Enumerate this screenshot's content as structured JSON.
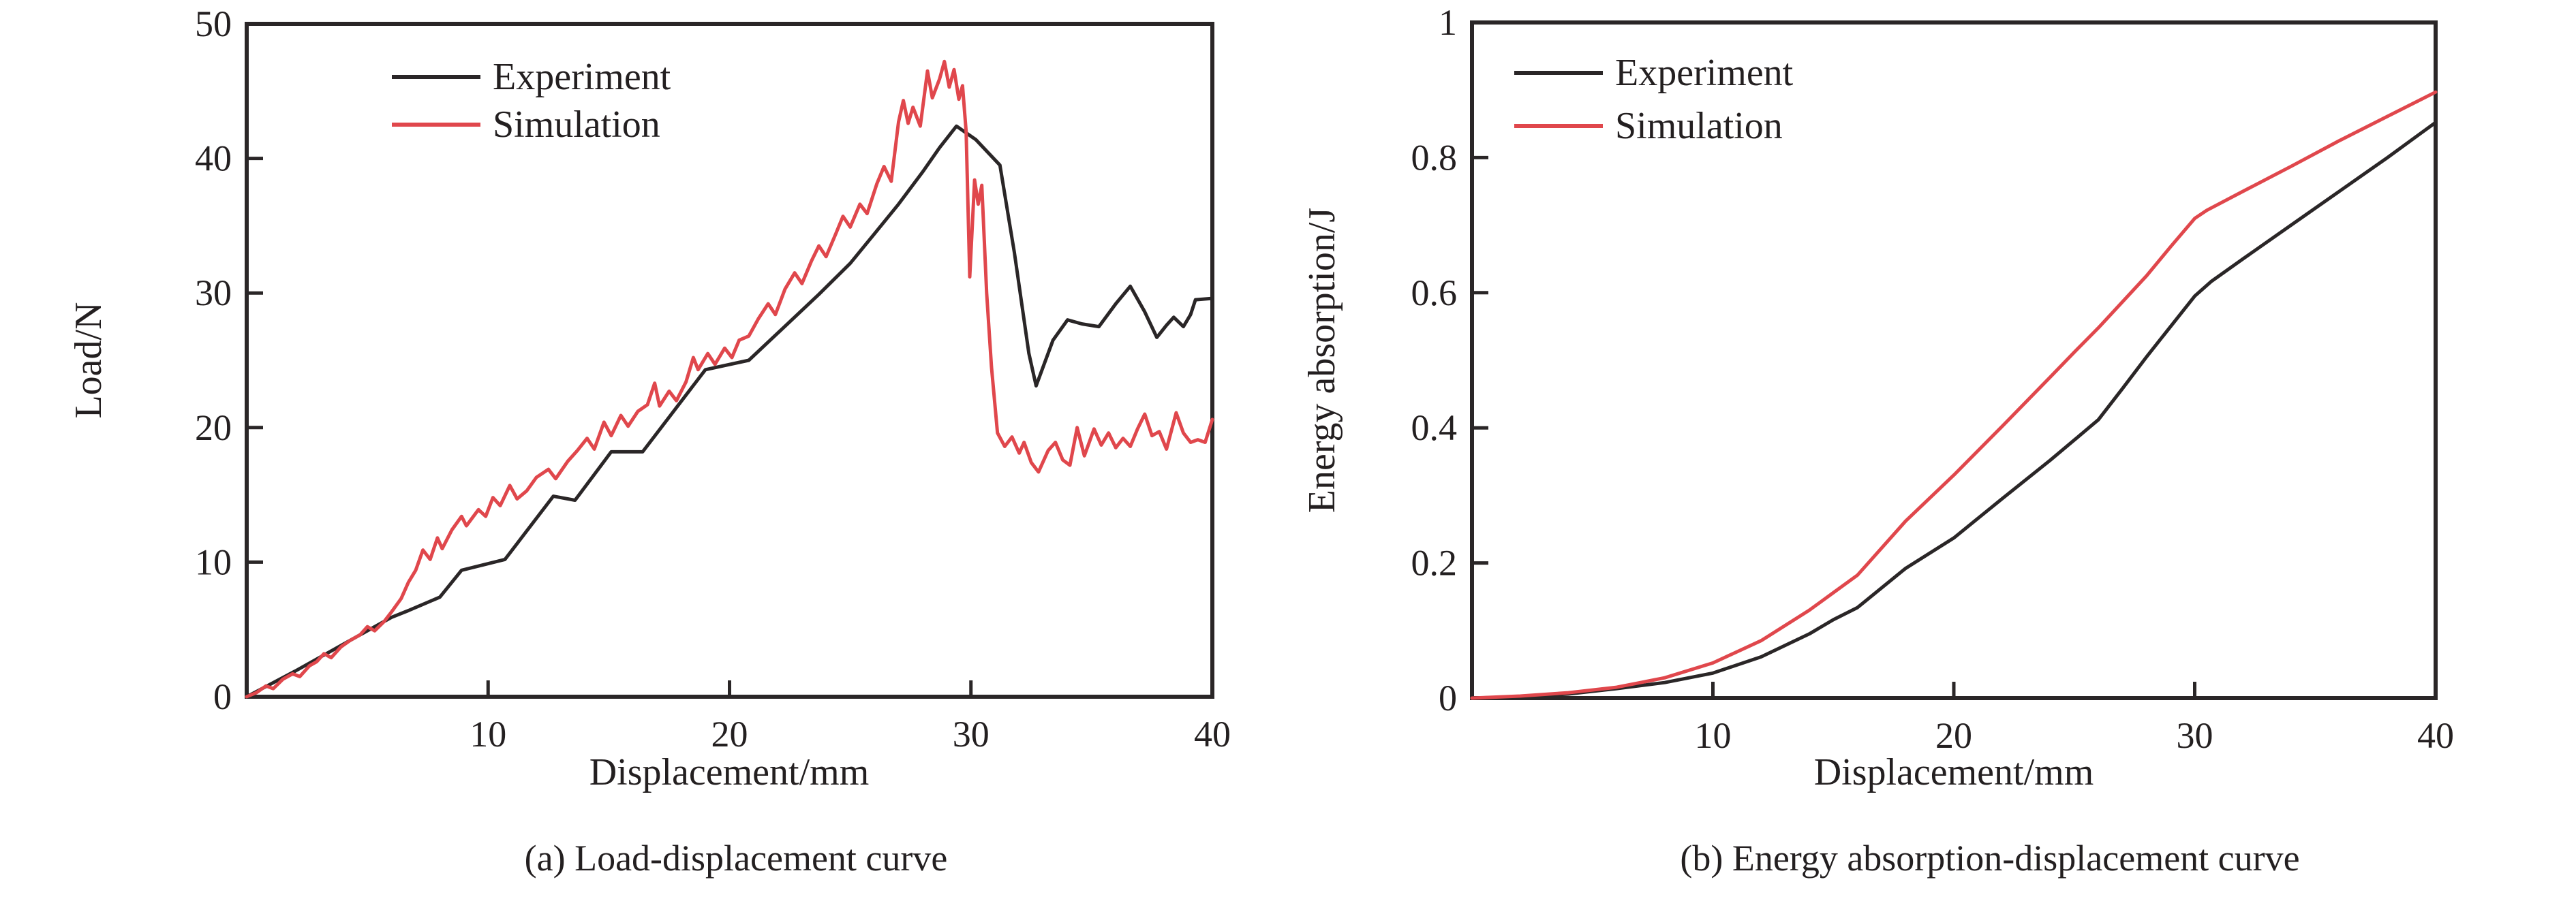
{
  "figure": {
    "background": "#ffffff",
    "text_color": "#231f20",
    "frame_color": "#2a2627",
    "accent_red": "#e0474c"
  },
  "chart_data": [
    {
      "type": "line",
      "panel_id": "a",
      "caption": "(a) Load-displacement curve",
      "xlabel": "Displacement/mm",
      "ylabel": "Load/N",
      "xlim": [
        0,
        40
      ],
      "ylim": [
        0,
        50
      ],
      "x_ticks": [
        10,
        20,
        30,
        40
      ],
      "y_ticks": [
        0,
        10,
        20,
        30,
        40,
        50
      ],
      "grid": false,
      "legend_position": "upper-left",
      "legend": [
        "Experiment",
        "Simulation"
      ],
      "series": [
        {
          "name": "Experiment",
          "color": "#2a2627",
          "points": [
            [
              0,
              0
            ],
            [
              2,
              1.9
            ],
            [
              4,
              3.9
            ],
            [
              6,
              5.9
            ],
            [
              6.7,
              6.4
            ],
            [
              8,
              7.4
            ],
            [
              8.9,
              9.4
            ],
            [
              10.7,
              10.2
            ],
            [
              12.7,
              14.9
            ],
            [
              13.6,
              14.6
            ],
            [
              15.1,
              18.2
            ],
            [
              16.4,
              18.2
            ],
            [
              19.0,
              24.3
            ],
            [
              20.8,
              25.0
            ],
            [
              23.7,
              29.9
            ],
            [
              25.0,
              32.2
            ],
            [
              26.0,
              34.4
            ],
            [
              27.0,
              36.6
            ],
            [
              28.0,
              39.0
            ],
            [
              28.7,
              40.8
            ],
            [
              29.4,
              42.4
            ],
            [
              30.2,
              41.4
            ],
            [
              31.2,
              39.5
            ],
            [
              31.8,
              33.0
            ],
            [
              32.4,
              25.5
            ],
            [
              32.7,
              23.1
            ],
            [
              33.4,
              26.5
            ],
            [
              34.0,
              28.0
            ],
            [
              34.6,
              27.7
            ],
            [
              35.3,
              27.5
            ],
            [
              36.0,
              29.2
            ],
            [
              36.6,
              30.5
            ],
            [
              37.2,
              28.6
            ],
            [
              37.7,
              26.7
            ],
            [
              38.1,
              27.6
            ],
            [
              38.4,
              28.2
            ],
            [
              38.8,
              27.5
            ],
            [
              39.1,
              28.4
            ],
            [
              39.3,
              29.5
            ],
            [
              40,
              29.6
            ]
          ]
        },
        {
          "name": "Simulation",
          "color": "#e0474c",
          "points": [
            [
              0,
              0
            ],
            [
              0.4,
              0.3
            ],
            [
              0.8,
              0.8
            ],
            [
              1.1,
              0.6
            ],
            [
              1.5,
              1.3
            ],
            [
              1.9,
              1.7
            ],
            [
              2.2,
              1.5
            ],
            [
              2.6,
              2.3
            ],
            [
              2.9,
              2.6
            ],
            [
              3.2,
              3.2
            ],
            [
              3.5,
              2.9
            ],
            [
              3.9,
              3.7
            ],
            [
              4.3,
              4.2
            ],
            [
              4.7,
              4.6
            ],
            [
              5.0,
              5.2
            ],
            [
              5.3,
              4.9
            ],
            [
              5.7,
              5.6
            ],
            [
              6.0,
              6.3
            ],
            [
              6.4,
              7.3
            ],
            [
              6.7,
              8.5
            ],
            [
              7.0,
              9.4
            ],
            [
              7.3,
              10.9
            ],
            [
              7.6,
              10.2
            ],
            [
              7.9,
              11.8
            ],
            [
              8.1,
              11.0
            ],
            [
              8.5,
              12.4
            ],
            [
              8.9,
              13.4
            ],
            [
              9.1,
              12.7
            ],
            [
              9.6,
              13.9
            ],
            [
              9.9,
              13.4
            ],
            [
              10.2,
              14.8
            ],
            [
              10.5,
              14.2
            ],
            [
              10.9,
              15.7
            ],
            [
              11.2,
              14.7
            ],
            [
              11.6,
              15.3
            ],
            [
              12.0,
              16.3
            ],
            [
              12.5,
              16.9
            ],
            [
              12.8,
              16.2
            ],
            [
              13.3,
              17.5
            ],
            [
              13.7,
              18.3
            ],
            [
              14.1,
              19.2
            ],
            [
              14.4,
              18.4
            ],
            [
              14.8,
              20.4
            ],
            [
              15.1,
              19.4
            ],
            [
              15.5,
              20.9
            ],
            [
              15.8,
              20.1
            ],
            [
              16.2,
              21.2
            ],
            [
              16.6,
              21.7
            ],
            [
              16.9,
              23.3
            ],
            [
              17.1,
              21.6
            ],
            [
              17.5,
              22.7
            ],
            [
              17.8,
              22.0
            ],
            [
              18.2,
              23.4
            ],
            [
              18.5,
              25.2
            ],
            [
              18.7,
              24.3
            ],
            [
              19.1,
              25.5
            ],
            [
              19.4,
              24.7
            ],
            [
              19.8,
              25.9
            ],
            [
              20.1,
              25.2
            ],
            [
              20.4,
              26.5
            ],
            [
              20.8,
              26.8
            ],
            [
              21.2,
              28.1
            ],
            [
              21.6,
              29.2
            ],
            [
              21.9,
              28.4
            ],
            [
              22.3,
              30.3
            ],
            [
              22.7,
              31.5
            ],
            [
              23.0,
              30.7
            ],
            [
              23.4,
              32.4
            ],
            [
              23.7,
              33.5
            ],
            [
              24.0,
              32.7
            ],
            [
              24.4,
              34.4
            ],
            [
              24.7,
              35.7
            ],
            [
              25.0,
              34.9
            ],
            [
              25.4,
              36.6
            ],
            [
              25.7,
              35.9
            ],
            [
              26.1,
              38.1
            ],
            [
              26.4,
              39.4
            ],
            [
              26.7,
              38.3
            ],
            [
              27.0,
              42.7
            ],
            [
              27.2,
              44.3
            ],
            [
              27.4,
              42.6
            ],
            [
              27.6,
              43.8
            ],
            [
              27.9,
              42.4
            ],
            [
              28.2,
              46.5
            ],
            [
              28.4,
              44.5
            ],
            [
              28.7,
              45.9
            ],
            [
              28.9,
              47.2
            ],
            [
              29.1,
              45.3
            ],
            [
              29.3,
              46.6
            ],
            [
              29.5,
              44.4
            ],
            [
              29.65,
              45.4
            ],
            [
              29.8,
              42.0
            ],
            [
              29.95,
              31.2
            ],
            [
              30.15,
              38.4
            ],
            [
              30.3,
              36.6
            ],
            [
              30.45,
              38.0
            ],
            [
              30.65,
              30.0
            ],
            [
              30.85,
              24.5
            ],
            [
              31.1,
              19.6
            ],
            [
              31.4,
              18.6
            ],
            [
              31.7,
              19.3
            ],
            [
              32.0,
              18.1
            ],
            [
              32.2,
              18.9
            ],
            [
              32.5,
              17.4
            ],
            [
              32.8,
              16.7
            ],
            [
              33.2,
              18.3
            ],
            [
              33.5,
              18.9
            ],
            [
              33.8,
              17.6
            ],
            [
              34.1,
              17.2
            ],
            [
              34.4,
              20.0
            ],
            [
              34.7,
              17.9
            ],
            [
              35.1,
              19.9
            ],
            [
              35.4,
              18.7
            ],
            [
              35.7,
              19.6
            ],
            [
              36.0,
              18.5
            ],
            [
              36.3,
              19.2
            ],
            [
              36.6,
              18.6
            ],
            [
              36.9,
              19.9
            ],
            [
              37.2,
              21.0
            ],
            [
              37.5,
              19.4
            ],
            [
              37.8,
              19.7
            ],
            [
              38.1,
              18.4
            ],
            [
              38.5,
              21.1
            ],
            [
              38.8,
              19.6
            ],
            [
              39.1,
              18.9
            ],
            [
              39.4,
              19.1
            ],
            [
              39.7,
              18.9
            ],
            [
              40,
              20.6
            ]
          ]
        }
      ]
    },
    {
      "type": "line",
      "panel_id": "b",
      "caption": "(b) Energy absorption-displacement curve",
      "xlabel": "Displacement/mm",
      "ylabel": "Energy absorption/J",
      "xlim": [
        0,
        40
      ],
      "ylim": [
        0,
        1.0
      ],
      "x_ticks": [
        10,
        20,
        30,
        40
      ],
      "y_ticks": [
        0,
        0.2,
        0.4,
        0.6,
        0.8,
        1.0
      ],
      "grid": false,
      "legend_position": "upper-left",
      "legend": [
        "Experiment",
        "Simulation"
      ],
      "series": [
        {
          "name": "Experiment",
          "color": "#2a2627",
          "points": [
            [
              0,
              0
            ],
            [
              2,
              0.002
            ],
            [
              4,
              0.006
            ],
            [
              6,
              0.014
            ],
            [
              8,
              0.023
            ],
            [
              10,
              0.037
            ],
            [
              12,
              0.061
            ],
            [
              14,
              0.095
            ],
            [
              15,
              0.116
            ],
            [
              16,
              0.134
            ],
            [
              18,
              0.192
            ],
            [
              20,
              0.237
            ],
            [
              22,
              0.295
            ],
            [
              24,
              0.352
            ],
            [
              25,
              0.382
            ],
            [
              26,
              0.412
            ],
            [
              27,
              0.458
            ],
            [
              28,
              0.505
            ],
            [
              29,
              0.55
            ],
            [
              30,
              0.595
            ],
            [
              30.7,
              0.617
            ],
            [
              32,
              0.65
            ],
            [
              34,
              0.7
            ],
            [
              36,
              0.75
            ],
            [
              38,
              0.8
            ],
            [
              39,
              0.826
            ],
            [
              40,
              0.852
            ]
          ]
        },
        {
          "name": "Simulation",
          "color": "#e0474c",
          "points": [
            [
              0,
              0
            ],
            [
              2,
              0.003
            ],
            [
              4,
              0.008
            ],
            [
              6,
              0.016
            ],
            [
              8,
              0.03
            ],
            [
              10,
              0.052
            ],
            [
              12,
              0.085
            ],
            [
              14,
              0.13
            ],
            [
              15,
              0.156
            ],
            [
              16,
              0.182
            ],
            [
              18,
              0.262
            ],
            [
              20,
              0.33
            ],
            [
              22,
              0.402
            ],
            [
              24,
              0.475
            ],
            [
              25,
              0.512
            ],
            [
              26,
              0.548
            ],
            [
              28,
              0.625
            ],
            [
              29,
              0.668
            ],
            [
              30,
              0.71
            ],
            [
              30.5,
              0.722
            ],
            [
              32,
              0.75
            ],
            [
              34,
              0.787
            ],
            [
              36,
              0.825
            ],
            [
              38,
              0.861
            ],
            [
              40,
              0.897
            ]
          ]
        }
      ]
    }
  ]
}
